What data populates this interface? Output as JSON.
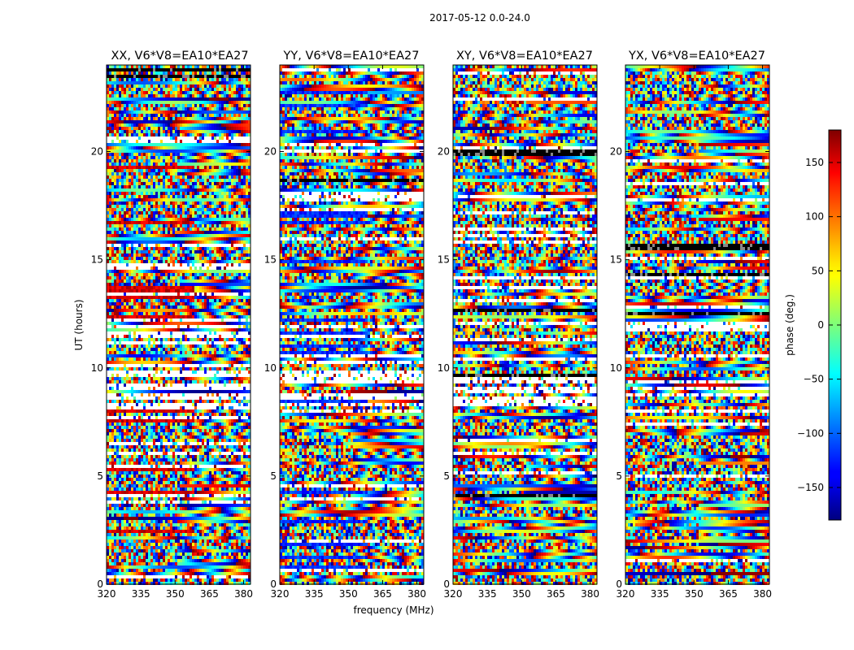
{
  "chart_data": {
    "type": "heatmap",
    "title": "2017-05-12 0.0-24.0",
    "xlabel": "frequency (MHz)",
    "ylabel": "UT (hours)",
    "xlim": [
      320,
      383
    ],
    "ylim": [
      0,
      24
    ],
    "xticks": [
      320,
      335,
      350,
      365,
      380
    ],
    "yticks": [
      0,
      5,
      10,
      15,
      20
    ],
    "colormap": "jet",
    "panels": [
      {
        "title": "XX, V6*V8=EA10*EA27",
        "phase_bias": 150
      },
      {
        "title": "YY, V6*V8=EA10*EA27",
        "phase_bias": -120
      },
      {
        "title": "XY, V6*V8=EA10*EA27",
        "phase_bias": 0
      },
      {
        "title": "YX, V6*V8=EA10*EA27",
        "phase_bias": 0
      }
    ],
    "colorbar": {
      "label": "phase (deg.)",
      "range": [
        -180,
        180
      ],
      "ticks": [
        150,
        100,
        50,
        0,
        -50,
        -100,
        -150
      ],
      "tick_labels": [
        "150",
        "100",
        "50",
        "0",
        "−50",
        "−100",
        "−150"
      ]
    }
  }
}
